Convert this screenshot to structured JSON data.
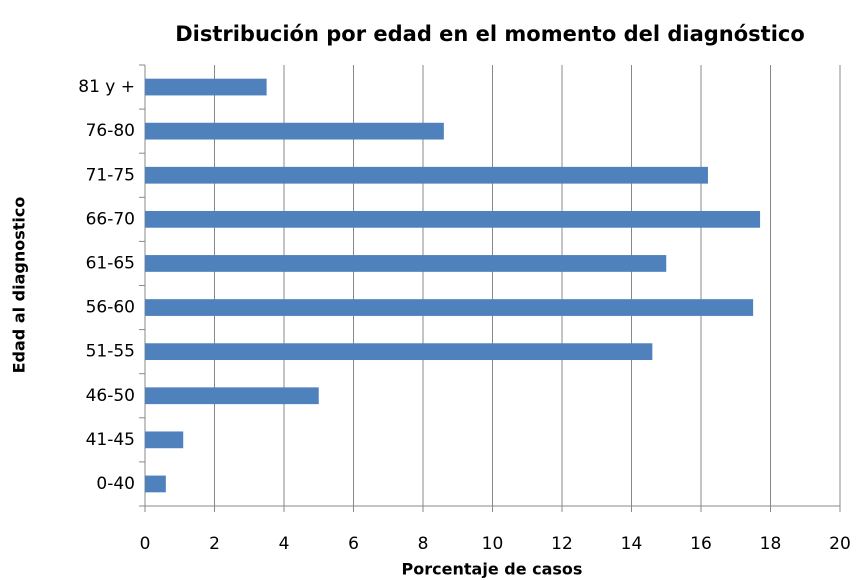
{
  "chart_data": {
    "type": "bar",
    "orientation": "horizontal",
    "title": "Distribución por edad en el momento del diagnóstico",
    "x_label": "Porcentaje de casos",
    "y_label": "Edad al diagnostico",
    "categories": [
      "0-40",
      "41-45",
      "46-50",
      "51-55",
      "56-60",
      "61-65",
      "66-70",
      "71-75",
      "76-80",
      "81 y +"
    ],
    "values": [
      0.6,
      1.1,
      5.0,
      14.6,
      17.5,
      15.0,
      17.7,
      16.2,
      8.6,
      3.5
    ],
    "color": "#4f81bd",
    "xlim": [
      0,
      20
    ],
    "xticks": [
      0,
      2,
      4,
      6,
      8,
      10,
      12,
      14,
      16,
      18,
      20
    ],
    "grid": true
  }
}
